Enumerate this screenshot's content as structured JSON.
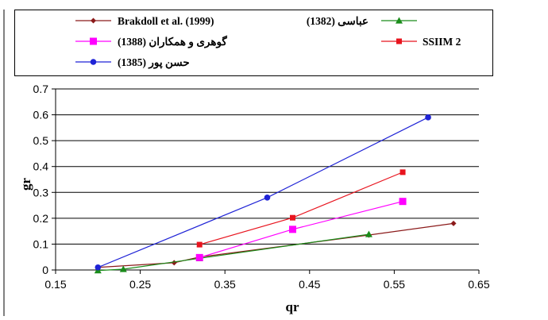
{
  "chart_data": {
    "type": "line",
    "xlabel": "qr",
    "ylabel": "gr",
    "xlim": [
      0.15,
      0.65
    ],
    "ylim": [
      0,
      0.7
    ],
    "xticks": [
      0.15,
      0.25,
      0.35,
      0.45,
      0.55,
      0.65
    ],
    "yticks": [
      0,
      0.1,
      0.2,
      0.3,
      0.4,
      0.5,
      0.6,
      0.7
    ],
    "xtick_labels": [
      "0.15",
      "0.25",
      "0.35",
      "0.45",
      "0.55",
      "0.65"
    ],
    "ytick_labels": [
      "0",
      "0.1",
      "0.2",
      "0.3",
      "0.4",
      "0.5",
      "0.6",
      "0.7"
    ],
    "grid": "horizontal",
    "legend_position": "top",
    "series": [
      {
        "name": "Brakdoll et al. (1999)",
        "color": "#8B1A1A",
        "marker": "diamond",
        "x": [
          0.2,
          0.29,
          0.32,
          0.52,
          0.62
        ],
        "y": [
          0.01,
          0.028,
          0.05,
          0.135,
          0.18
        ]
      },
      {
        "name": "عباسی (1382)",
        "color": "#1A8C1A",
        "marker": "triangle",
        "x": [
          0.2,
          0.23,
          0.32,
          0.52
        ],
        "y": [
          -0.002,
          0.003,
          0.045,
          0.138
        ]
      },
      {
        "name": "گوهری و همکاران (1388)",
        "color": "#FF00FF",
        "marker": "square",
        "x": [
          0.32,
          0.43,
          0.56
        ],
        "y": [
          0.048,
          0.157,
          0.265
        ]
      },
      {
        "name": "SSIIM 2",
        "color": "#E8141E",
        "marker": "square-small",
        "x": [
          0.32,
          0.43,
          0.56
        ],
        "y": [
          0.098,
          0.202,
          0.378
        ]
      },
      {
        "name": "حسن پور (1385)",
        "color": "#1F23D6",
        "marker": "circle",
        "x": [
          0.2,
          0.4,
          0.59
        ],
        "y": [
          0.01,
          0.28,
          0.59
        ]
      }
    ]
  }
}
